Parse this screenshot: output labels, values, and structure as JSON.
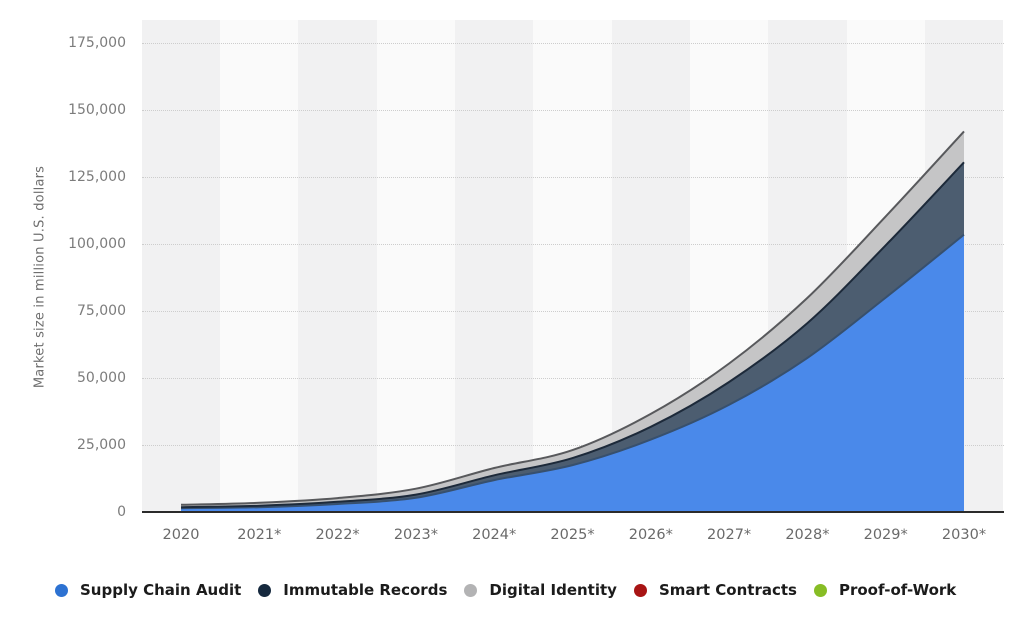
{
  "chart_data": {
    "type": "area",
    "stacked": true,
    "title": "",
    "ylabel": "Market size in million U.S. dollars",
    "xlabel": "",
    "x": [
      "2020",
      "2021*",
      "2022*",
      "2023*",
      "2024*",
      "2025*",
      "2026*",
      "2027*",
      "2028*",
      "2029*",
      "2030*"
    ],
    "yticks": [
      "175,000",
      "150,000",
      "125,000",
      "100,000",
      "75,000",
      "50,000",
      "25,000",
      "0"
    ],
    "ylim": [
      0,
      183000
    ],
    "grid": "dotted-horizontal",
    "legend_position": "bottom",
    "series": [
      {
        "name": "Supply Chain Audit",
        "color": "#2d72d2",
        "fill": "#4a89ea",
        "line": "#37506e",
        "values": [
          1400,
          1800,
          3000,
          5300,
          11900,
          17500,
          27000,
          40000,
          57500,
          80000,
          103500
        ]
      },
      {
        "name": "Immutable Records",
        "color": "#16293e",
        "fill": "#4c5d70",
        "line": "#1d2a3a",
        "values": [
          400,
          550,
          800,
          1200,
          1800,
          2600,
          4800,
          8500,
          13000,
          19500,
          27000
        ]
      },
      {
        "name": "Digital Identity",
        "color": "#b3b3b4",
        "fill": "#c5c5c6",
        "line": "#58595c",
        "values": [
          900,
          1100,
          1400,
          2200,
          2700,
          3000,
          4800,
          6900,
          9400,
          10800,
          11500
        ]
      },
      {
        "name": "Smart Contracts",
        "color": "#a81414",
        "fill": "#a81414",
        "line": "#7c0f0f",
        "values": [
          0,
          0,
          0,
          0,
          0,
          0,
          0,
          0,
          0,
          0,
          0
        ]
      },
      {
        "name": "Proof-of-Work",
        "color": "#87bd25",
        "fill": "#87bd25",
        "line": "#6a980f",
        "values": [
          0,
          0,
          0,
          0,
          0,
          0,
          0,
          0,
          0,
          0,
          0
        ]
      }
    ],
    "styling": {
      "stripe_colors": [
        "#f1f1f2",
        "#fafafa"
      ],
      "gridline_color": "#cdcdcd",
      "axis_line_color": "#2b2b2b",
      "y_tick_label_color": "#7c7c7c",
      "x_tick_label_color": "#6a6a6a",
      "legend_text_color": "#1b1b1b"
    }
  }
}
